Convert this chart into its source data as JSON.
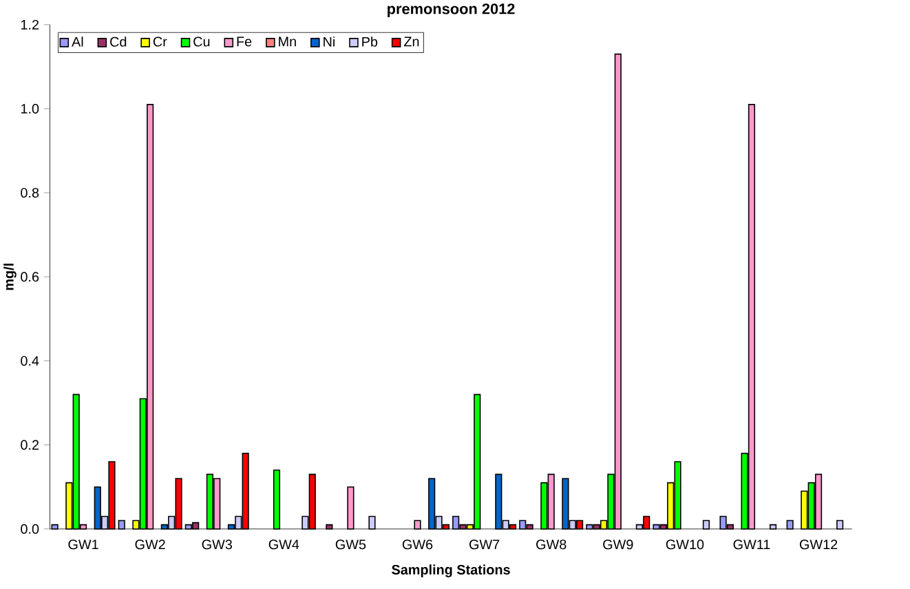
{
  "chart_data": {
    "type": "bar",
    "title": "premonsoon 2012",
    "xlabel": "Sampling Stations",
    "ylabel": "mg/l",
    "categories": [
      "GW1",
      "GW2",
      "GW3",
      "GW4",
      "GW5",
      "GW6",
      "GW7",
      "GW8",
      "GW9",
      "GW10",
      "GW11",
      "GW12"
    ],
    "series": [
      {
        "name": "Al",
        "color": "#9999ff",
        "values": [
          0.01,
          0.02,
          0.01,
          null,
          null,
          null,
          0.03,
          0.02,
          0.01,
          0.01,
          0.03,
          0.02
        ]
      },
      {
        "name": "Cd",
        "color": "#993366",
        "values": [
          null,
          null,
          0.015,
          null,
          0.01,
          null,
          0.01,
          0.01,
          0.01,
          0.01,
          0.01,
          null
        ]
      },
      {
        "name": "Cr",
        "color": "#ffff00",
        "values": [
          0.11,
          0.02,
          null,
          null,
          null,
          null,
          0.01,
          null,
          0.02,
          0.11,
          null,
          0.09
        ]
      },
      {
        "name": "Cu",
        "color": "#00ff00",
        "values": [
          0.32,
          0.31,
          0.13,
          0.14,
          null,
          null,
          0.32,
          0.11,
          0.13,
          0.16,
          0.18,
          0.11
        ]
      },
      {
        "name": "Fe",
        "color": "#ff99cc",
        "values": [
          0.01,
          1.01,
          0.12,
          null,
          0.1,
          0.02,
          null,
          0.13,
          1.13,
          null,
          1.01,
          0.13
        ]
      },
      {
        "name": "Mn",
        "color": "#ff8080",
        "values": [
          null,
          null,
          null,
          null,
          null,
          null,
          null,
          null,
          null,
          null,
          null,
          null
        ]
      },
      {
        "name": "Ni",
        "color": "#0066cc",
        "values": [
          0.1,
          0.01,
          0.01,
          null,
          null,
          0.12,
          0.13,
          0.12,
          null,
          null,
          null,
          null
        ]
      },
      {
        "name": "Pb",
        "color": "#ccccff",
        "values": [
          0.03,
          0.03,
          0.03,
          0.03,
          0.03,
          0.03,
          0.02,
          0.02,
          0.01,
          0.02,
          0.01,
          0.02
        ]
      },
      {
        "name": "Zn",
        "color": "#ff0000",
        "values": [
          0.16,
          0.12,
          0.18,
          0.13,
          null,
          0.01,
          0.01,
          0.02,
          0.03,
          null,
          null,
          null
        ]
      }
    ],
    "ylim": [
      0,
      1.2
    ],
    "yticks": [
      {
        "value": 0,
        "label": "0.0"
      },
      0.2,
      0.4,
      0.6,
      0.8,
      {
        "value": 1.0,
        "label": "1.0"
      },
      1.2
    ],
    "legend": "top left",
    "grid": false
  }
}
